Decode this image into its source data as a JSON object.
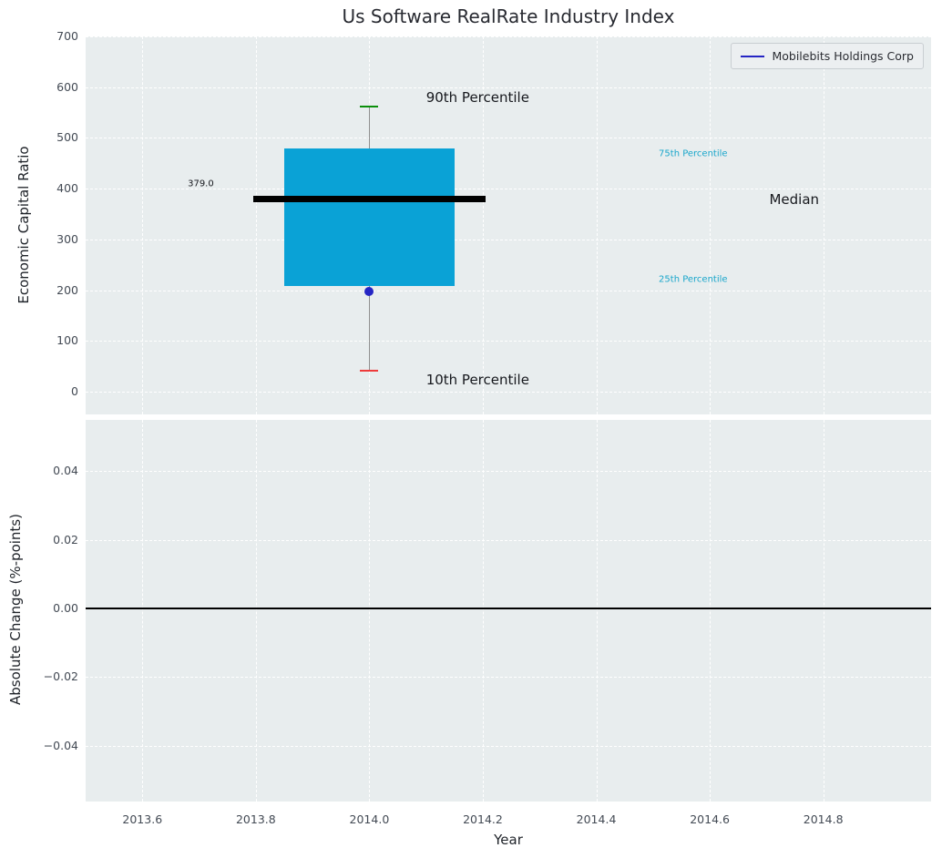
{
  "style": {
    "panel_bg": "#e8edee",
    "grid_color": "#ffffff",
    "tick_color": "#434a54",
    "title_color": "#282a31"
  },
  "x_axis": {
    "label": "Year",
    "ticks": [
      {
        "v": 2013.6,
        "label": "2013.6"
      },
      {
        "v": 2013.8,
        "label": "2013.8"
      },
      {
        "v": 2014.0,
        "label": "2014.0"
      },
      {
        "v": 2014.2,
        "label": "2014.2"
      },
      {
        "v": 2014.4,
        "label": "2014.4"
      },
      {
        "v": 2014.6,
        "label": "2014.6"
      },
      {
        "v": 2014.8,
        "label": "2014.8"
      }
    ]
  },
  "chart_data": [
    {
      "type": "boxplot",
      "title": "Us Software RealRate Industry Index",
      "ylabel": "Economic Capital Ratio",
      "xlabel": "",
      "xlim": [
        2013.5,
        2014.99
      ],
      "ylim": [
        -45,
        700
      ],
      "grid": true,
      "legend_position": "upper right",
      "yticks": [
        {
          "v": 0,
          "label": "0"
        },
        {
          "v": 100,
          "label": "100"
        },
        {
          "v": 200,
          "label": "200"
        },
        {
          "v": 300,
          "label": "300"
        },
        {
          "v": 400,
          "label": "400"
        },
        {
          "v": 500,
          "label": "500"
        },
        {
          "v": 600,
          "label": "600"
        },
        {
          "v": 700,
          "label": "700"
        }
      ],
      "box": {
        "x": 2014.0,
        "p10": 42,
        "p25": 209,
        "median": 379.0,
        "p75": 480,
        "p90": 562,
        "box_halfwidth": 0.15,
        "median_halfwidth": 0.205,
        "fill": "#0aa2d6",
        "median_color": "#000000",
        "whisker_color": "#909090",
        "p90_cap_color": "#0a8f0a",
        "p10_cap_color": "#ee3b3b"
      },
      "point": {
        "x": 2014.0,
        "y": 198,
        "color": "#2525c4",
        "name": "Mobilebits Holdings Corp"
      },
      "legend": {
        "label": "Mobilebits Holdings Corp",
        "line_color": "#2525c4"
      },
      "annotations": [
        {
          "text": "90th Percentile",
          "x": 2014.1,
          "y": 580,
          "color": "#16181d",
          "size": 15
        },
        {
          "text": "10th Percentile",
          "x": 2014.1,
          "y": 23,
          "color": "#16181d",
          "size": 15
        },
        {
          "text": "75th Percentile",
          "x": 2014.51,
          "y": 468,
          "color": "#19a6cb",
          "size": 10
        },
        {
          "text": "25th Percentile",
          "x": 2014.51,
          "y": 221,
          "color": "#19a6cb",
          "size": 10
        },
        {
          "text": "Median",
          "x": 2014.705,
          "y": 379,
          "color": "#16181d",
          "size": 15
        },
        {
          "text": "379.0",
          "x": 2013.68,
          "y": 409,
          "color": "#16181d",
          "size": 10
        }
      ]
    },
    {
      "type": "line",
      "title": "",
      "ylabel": "Absolute Change (%-points)",
      "xlabel": "Year",
      "xlim": [
        2013.5,
        2014.99
      ],
      "ylim": [
        -0.0562,
        0.0549
      ],
      "grid": true,
      "series": [],
      "yticks": [
        {
          "v": -0.04,
          "label": "−0.04"
        },
        {
          "v": -0.02,
          "label": "−0.02"
        },
        {
          "v": 0.0,
          "label": "0.00"
        },
        {
          "v": 0.02,
          "label": "0.02"
        },
        {
          "v": 0.04,
          "label": "0.04"
        }
      ],
      "zero_line": {
        "y": 0,
        "color": "#000000"
      }
    }
  ]
}
